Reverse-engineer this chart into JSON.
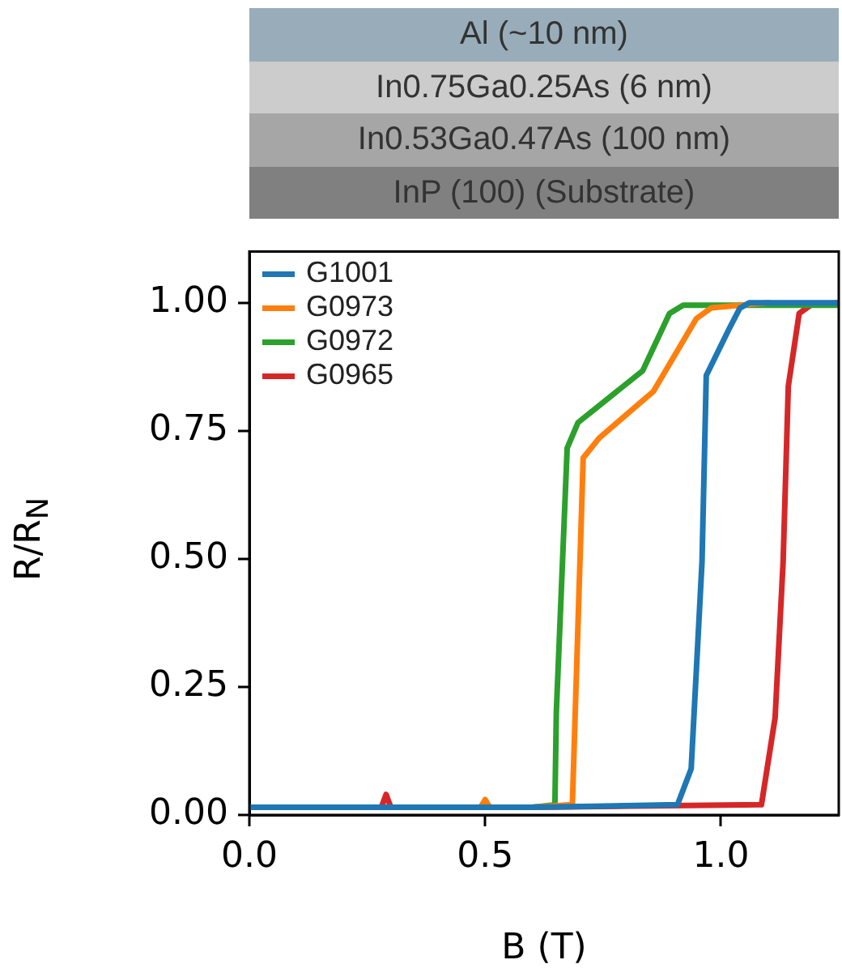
{
  "chart_data": {
    "type": "line",
    "xlabel": "B (T)",
    "ylabel": "R/R$_{N}$",
    "annotations": [
      "Al (~10 nm)",
      "In0.75Ga0.25As (6 nm)",
      "In0.53Ga0.47As (100 nm)",
      "InP (100) (Substrate)"
    ],
    "xlim": [
      0,
      1.25
    ],
    "ylim": [
      0,
      1.1
    ],
    "xticks": [
      {
        "value": 0,
        "label": "0.0"
      },
      0.5,
      {
        "value": 1,
        "label": "1.0"
      }
    ],
    "yticks": [
      {
        "value": 0,
        "label": "0.00"
      },
      0.25,
      {
        "value": 0.5,
        "label": "0.50"
      },
      0.75,
      {
        "value": 1,
        "label": "1.00"
      }
    ],
    "grid": false,
    "legend": "top left",
    "marker": "none",
    "line_style": "solid",
    "series": [
      {
        "name": "G1001",
        "color": "#1f77b4",
        "x": [
          0,
          0.3,
          0.6,
          0.908,
          0.937,
          0.96,
          0.969,
          1.017,
          1.04,
          1.06,
          1.25
        ],
        "values": [
          0.015,
          0.015,
          0.015,
          0.02,
          0.09,
          0.494,
          0.858,
          0.948,
          0.989,
          1.0,
          1.0
        ]
      },
      {
        "name": "G0973",
        "color": "#ff7f0e",
        "x": [
          0.3,
          0.49,
          0.5,
          0.51,
          0.6,
          0.685,
          0.708,
          0.742,
          0.857,
          0.948,
          0.98,
          1.1
        ],
        "values": [
          0.015,
          0.015,
          0.03,
          0.015,
          0.015,
          0.02,
          0.697,
          0.736,
          0.827,
          0.969,
          0.99,
          1.0
        ]
      },
      {
        "name": "G0972",
        "color": "#2ca02c",
        "x": [
          0,
          0.3,
          0.6,
          0.648,
          0.651,
          0.674,
          0.697,
          0.834,
          0.891,
          0.92,
          1.25
        ],
        "values": [
          0.015,
          0.015,
          0.015,
          0.02,
          0.2,
          0.716,
          0.766,
          0.867,
          0.979,
          0.995,
          0.995
        ]
      },
      {
        "name": "G0965",
        "color": "#d62728",
        "x": [
          0,
          0.28,
          0.29,
          0.3,
          0.6,
          1.086,
          1.115,
          1.132,
          1.143,
          1.166,
          1.19,
          1.25
        ],
        "values": [
          0.015,
          0.015,
          0.04,
          0.015,
          0.015,
          0.02,
          0.19,
          0.494,
          0.837,
          0.979,
          0.995,
          1.0
        ]
      }
    ]
  }
}
